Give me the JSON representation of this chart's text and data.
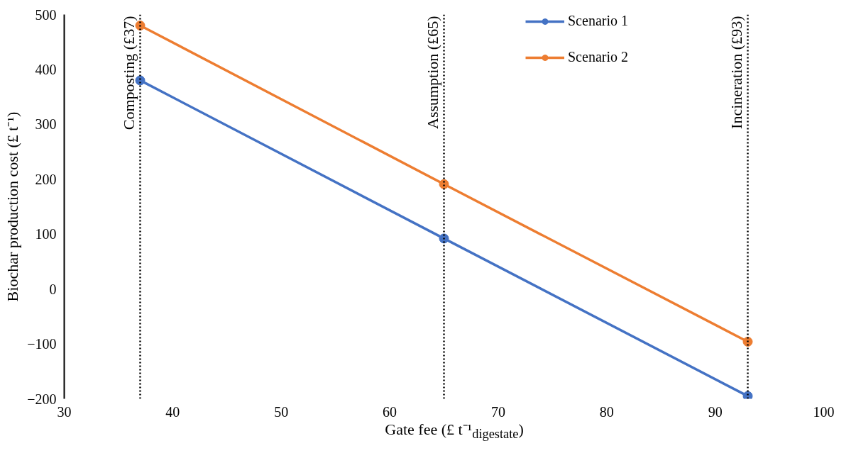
{
  "chart_data": {
    "type": "line",
    "xlabel": "Gate fee (£ t⁻¹$_{digestate}$)",
    "ylabel": "Biochar production cost (£ t⁻¹)",
    "series": [
      {
        "name": "Scenario 1",
        "color": "#4472c4",
        "x": [
          37,
          65,
          93
        ],
        "values": [
          380,
          92,
          -195
        ]
      },
      {
        "name": "Scenario 2",
        "color": "#ed7d31",
        "x": [
          37,
          65,
          93
        ],
        "values": [
          480,
          191,
          -96
        ]
      }
    ],
    "xlim": [
      30,
      100
    ],
    "xticks": [
      30,
      40,
      50,
      60,
      70,
      80,
      90,
      100
    ],
    "ylim": [
      -200,
      500
    ],
    "yticks": [
      -200,
      -100,
      0,
      100,
      200,
      300,
      400,
      500
    ],
    "ref_lines": [
      {
        "axis": "x",
        "value": 37,
        "label": "Composting (£37)",
        "color": "#000000",
        "line_style": "dotted"
      },
      {
        "axis": "x",
        "value": 65,
        "label": "Assumption (£65)",
        "color": "#000000",
        "line_style": "dotted"
      },
      {
        "axis": "x",
        "value": 93,
        "label": "Incineration (£93)",
        "color": "#000000",
        "line_style": "dotted"
      }
    ],
    "marker": "circle",
    "line_style": "solid",
    "grid": false,
    "legend": "top right"
  }
}
